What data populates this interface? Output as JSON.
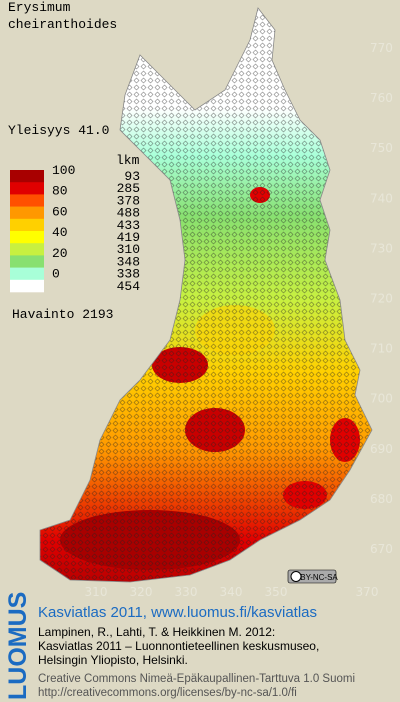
{
  "species": {
    "genus": "Erysimum",
    "epithet": "cheiranthoides"
  },
  "frequency": "Yleisyys  41.0",
  "legend": {
    "count_header": "lkm",
    "scale_labels": [
      "100",
      "80",
      "60",
      "40",
      "20",
      "0"
    ],
    "counts": [
      "93",
      "285",
      "378",
      "488",
      "433",
      "419",
      "310",
      "348",
      "338",
      "454"
    ],
    "colors": [
      "#a80000",
      "#e00000",
      "#ff5000",
      "#ff9800",
      "#ffd000",
      "#ffff00",
      "#c8f040",
      "#88e070",
      "#a8ffd8",
      "#ffffff"
    ],
    "observations": "Havainto 2193"
  },
  "grid_labels": {
    "north": [
      "770",
      "760",
      "750",
      "740",
      "730",
      "720",
      "710",
      "700",
      "690",
      "680",
      "670"
    ],
    "east": [
      "310",
      "320",
      "330",
      "340",
      "350",
      "370"
    ]
  },
  "license_badge": "BY-NC-SA",
  "footer": {
    "brand": "LUOMUS",
    "headline": "Kasviatlas 2011, www.luomus.fi/kasviatlas",
    "citation": [
      "Lampinen, R., Lahti, T. & Heikkinen M. 2012:",
      "Kasviatlas 2011 – Luonnontieteellinen keskusmuseo,",
      "Helsingin Yliopisto, Helsinki."
    ],
    "license": [
      "Creative Commons Nimeä-Epäkaupallinen-Tarttuva 1.0 Suomi",
      "http://creativecommons.org/licenses/by-nc-sa/1.0/fi"
    ]
  }
}
